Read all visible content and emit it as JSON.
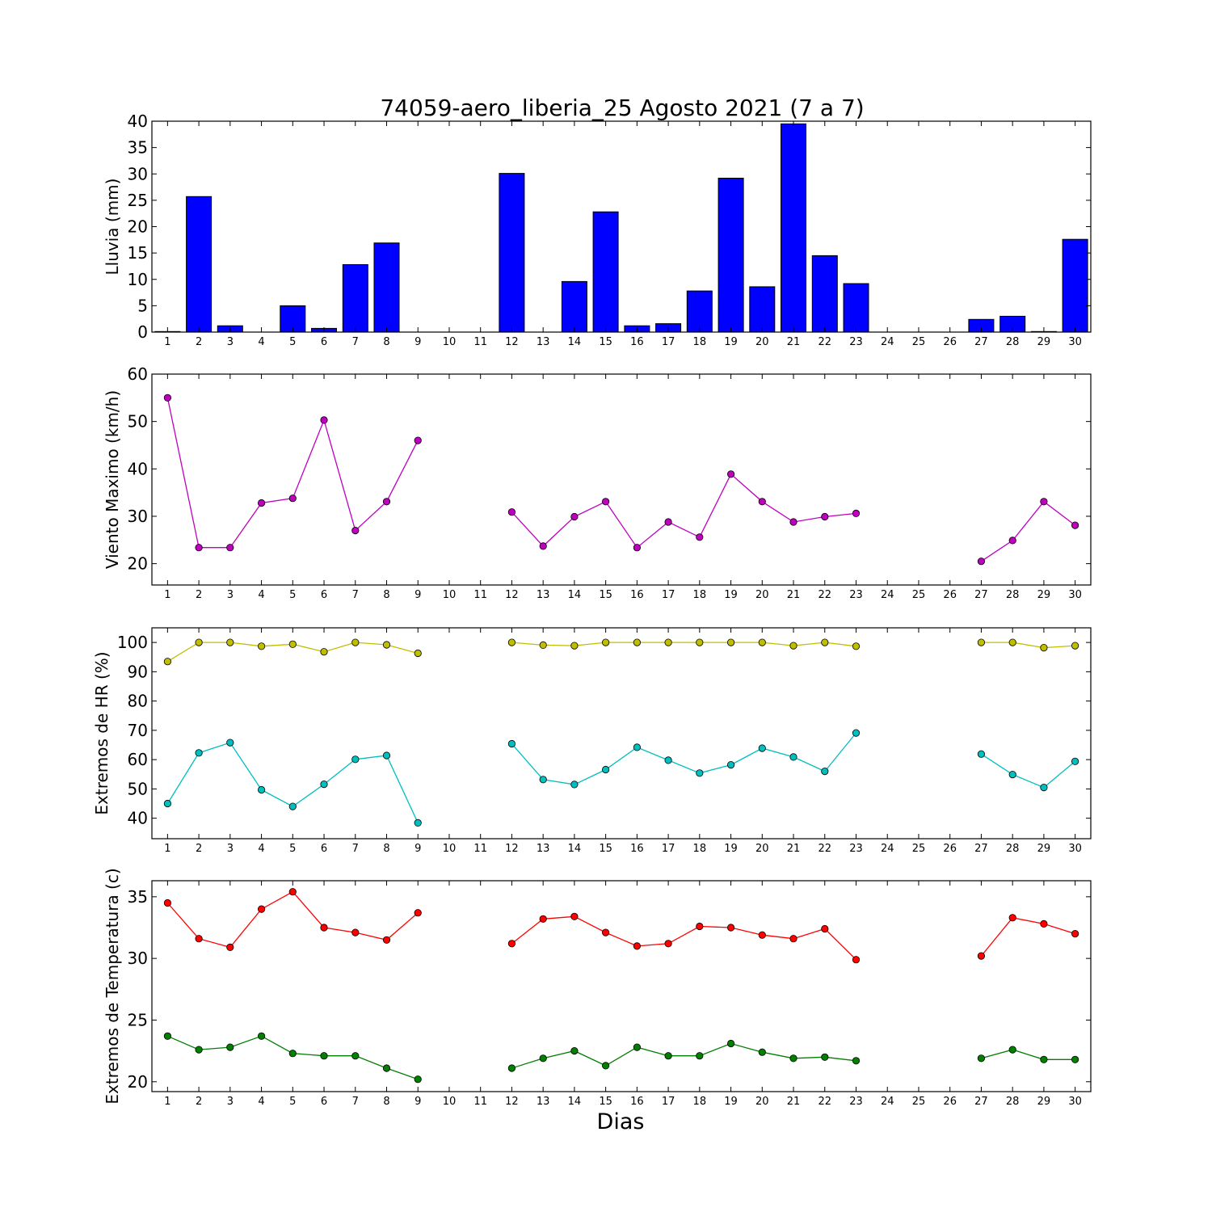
{
  "figure": {
    "title": "74059-aero_liberia_25 Agosto 2021  (7 a 7)",
    "xlabel": "Dias"
  },
  "chart_data": [
    {
      "type": "bar",
      "ylabel": "Lluvia (mm)",
      "ylim": [
        0,
        40
      ],
      "yticks": [
        0,
        5,
        10,
        15,
        20,
        25,
        30,
        35,
        40
      ],
      "categories": [
        1,
        2,
        3,
        4,
        5,
        6,
        7,
        8,
        9,
        10,
        11,
        12,
        13,
        14,
        15,
        16,
        17,
        18,
        19,
        20,
        21,
        22,
        23,
        24,
        25,
        26,
        27,
        28,
        29,
        30
      ],
      "series": [
        {
          "color": "#0000ff",
          "values": [
            0.1,
            25.7,
            1.2,
            0,
            5.0,
            0.7,
            12.8,
            16.9,
            0,
            0,
            0,
            30.1,
            0,
            9.6,
            22.8,
            1.2,
            1.6,
            7.8,
            29.2,
            8.6,
            39.5,
            14.5,
            9.2,
            0,
            0,
            0,
            2.4,
            3.0,
            0.1,
            17.6
          ]
        }
      ]
    },
    {
      "type": "line",
      "ylabel": "Viento Maximo (km/h)",
      "ylim": [
        15.5,
        60
      ],
      "yticks": [
        20,
        30,
        40,
        50,
        60
      ],
      "categories": [
        1,
        2,
        3,
        4,
        5,
        6,
        7,
        8,
        9,
        10,
        11,
        12,
        13,
        14,
        15,
        16,
        17,
        18,
        19,
        20,
        21,
        22,
        23,
        24,
        25,
        26,
        27,
        28,
        29,
        30
      ],
      "series": [
        {
          "color": "#bf00bf",
          "values": [
            55.0,
            23.4,
            23.4,
            32.8,
            33.8,
            50.3,
            27.0,
            33.1,
            46.0,
            null,
            null,
            30.9,
            23.7,
            29.9,
            33.1,
            23.4,
            28.8,
            25.6,
            38.9,
            33.1,
            28.8,
            29.9,
            30.6,
            null,
            null,
            null,
            20.5,
            24.9,
            33.1,
            28.1
          ]
        }
      ]
    },
    {
      "type": "line",
      "ylabel": "Extremos de HR (%)",
      "ylim": [
        33,
        105
      ],
      "yticks": [
        40,
        50,
        60,
        70,
        80,
        90,
        100
      ],
      "categories": [
        1,
        2,
        3,
        4,
        5,
        6,
        7,
        8,
        9,
        10,
        11,
        12,
        13,
        14,
        15,
        16,
        17,
        18,
        19,
        20,
        21,
        22,
        23,
        24,
        25,
        26,
        27,
        28,
        29,
        30
      ],
      "series": [
        {
          "color": "#bfbf00",
          "values": [
            93.5,
            100,
            100,
            98.7,
            99.4,
            96.8,
            100,
            99.2,
            96.3,
            null,
            null,
            100,
            99.1,
            98.9,
            100,
            100,
            100,
            100,
            100,
            100,
            98.9,
            100,
            98.7,
            null,
            null,
            null,
            100,
            100,
            98.2,
            98.9
          ]
        },
        {
          "color": "#00bfbf",
          "values": [
            45.0,
            62.3,
            65.8,
            49.7,
            44.0,
            51.6,
            60.1,
            61.4,
            38.4,
            null,
            null,
            65.4,
            53.2,
            51.5,
            56.6,
            64.2,
            59.8,
            55.4,
            58.2,
            63.9,
            60.9,
            56.0,
            69.1,
            null,
            null,
            null,
            61.9,
            54.9,
            50.5,
            59.4
          ]
        }
      ]
    },
    {
      "type": "line",
      "ylabel": "Extremos de Temperatura (c)",
      "ylim": [
        19.2,
        36.3
      ],
      "yticks": [
        20,
        25,
        30,
        35
      ],
      "categories": [
        1,
        2,
        3,
        4,
        5,
        6,
        7,
        8,
        9,
        10,
        11,
        12,
        13,
        14,
        15,
        16,
        17,
        18,
        19,
        20,
        21,
        22,
        23,
        24,
        25,
        26,
        27,
        28,
        29,
        30
      ],
      "series": [
        {
          "color": "#ff0000",
          "values": [
            34.5,
            31.6,
            30.9,
            34.0,
            35.4,
            32.5,
            32.1,
            31.5,
            33.7,
            null,
            null,
            31.2,
            33.2,
            33.4,
            32.1,
            31.0,
            31.2,
            32.6,
            32.5,
            31.9,
            31.6,
            32.4,
            29.9,
            null,
            null,
            null,
            30.2,
            33.3,
            32.8,
            32.0
          ]
        },
        {
          "color": "#007f00",
          "values": [
            23.7,
            22.6,
            22.8,
            23.7,
            22.3,
            22.1,
            22.1,
            21.1,
            20.2,
            null,
            null,
            21.1,
            21.9,
            22.5,
            21.3,
            22.8,
            22.1,
            22.1,
            23.1,
            22.4,
            21.9,
            22.0,
            21.7,
            null,
            null,
            null,
            21.9,
            22.6,
            21.8,
            21.8
          ]
        }
      ]
    }
  ]
}
